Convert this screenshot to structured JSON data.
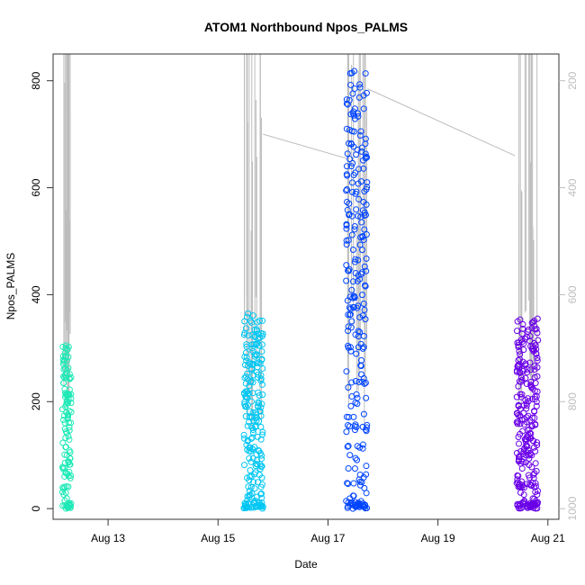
{
  "chart_data": {
    "type": "scatter",
    "title": "ATOM1 Northbound Npos_PALMS",
    "xlabel": "Date",
    "ylabel": "Npos_PALMS",
    "x_tick_labels": [
      "Aug 13",
      "Aug 15",
      "Aug 17",
      "Aug 19",
      "Aug 21"
    ],
    "x_tick_days": [
      13,
      15,
      17,
      19,
      21
    ],
    "xlim_days": [
      12.0,
      21.2
    ],
    "y_ticks": [
      0,
      200,
      400,
      600,
      800
    ],
    "ylim": [
      -20,
      850
    ],
    "y2_ticks": [
      200,
      400,
      600,
      800,
      1000
    ],
    "y2_range": [
      1020,
      150
    ],
    "grid": false,
    "legend": "none",
    "colors": {
      "s1": "#1de9b6",
      "s2": "#00c6f2",
      "s3": "#0044ff",
      "s4": "#6a00e8",
      "overlay_line": "#bdbdbd",
      "axis": "#333333"
    },
    "bursts": [
      {
        "day_start": 12.17,
        "day_end": 12.33,
        "max": 305,
        "count": 130,
        "color_key": "s1"
      },
      {
        "day_start": 15.47,
        "day_end": 15.82,
        "max": 365,
        "count": 230,
        "color_key": "s2"
      },
      {
        "day_start": 17.33,
        "day_end": 17.72,
        "max": 818,
        "count": 260,
        "color_key": "s3"
      },
      {
        "day_start": 20.43,
        "day_end": 20.82,
        "max": 355,
        "count": 260,
        "color_key": "s4"
      }
    ],
    "overlay_line_segments": [
      [
        [
          15.82,
          300
        ],
        [
          17.33,
          345
        ]
      ],
      [
        [
          17.72,
          215
        ],
        [
          20.4,
          340
        ]
      ]
    ]
  }
}
